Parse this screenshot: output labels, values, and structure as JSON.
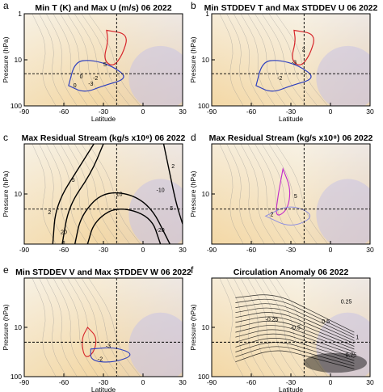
{
  "figure": {
    "xlabel": "Latitude",
    "ylabel": "Pressure (hPa)",
    "colors": {
      "warm_fill": "#f3d8a6",
      "cool_fill": "#c9c2e3",
      "pale": "#f7f1e4",
      "red_contour": "#d7262b",
      "blue_contour": "#2d3fbf",
      "magenta_contour": "#c22ac9",
      "black_contour": "#000000",
      "gray_contour": "#8a8a8a"
    }
  },
  "chart_data": [
    {
      "panel": "a",
      "type": "contour",
      "title": "Min T (K) and Max U (m/s)  06 2022",
      "x_ticks": [
        "-90",
        "-60",
        "-30",
        "0",
        "30"
      ],
      "y_ticks": [
        "1",
        "10",
        "100"
      ],
      "xlim": [
        -90,
        30
      ],
      "ylim": [
        100,
        1
      ],
      "yscale": "log",
      "show_xlabel": true,
      "contour_labels": [
        "0",
        "-2",
        "-3",
        "0",
        "5"
      ],
      "reference_lines": {
        "lat": -20,
        "pressure": 20
      }
    },
    {
      "panel": "b",
      "type": "contour",
      "title": "Min STDDEV T and Max STDDEV U  06 2022",
      "x_ticks": [
        "-90",
        "-60",
        "-30",
        "0",
        "30"
      ],
      "y_ticks": [
        "1",
        "10",
        "100"
      ],
      "xlim": [
        -90,
        30
      ],
      "ylim": [
        100,
        1
      ],
      "yscale": "log",
      "show_xlabel": true,
      "contour_labels": [
        "-3",
        "-2",
        "2"
      ],
      "reference_lines": {
        "lat": -20,
        "pressure": 20
      }
    },
    {
      "panel": "c",
      "type": "contour",
      "title": "Max Residual Stream (kg/s x10⁸)  06 2022",
      "x_ticks": [
        "-90",
        "-60",
        "-30",
        "0",
        "30"
      ],
      "y_ticks": [
        "10"
      ],
      "xlim": [
        -90,
        30
      ],
      "ylim": [
        100,
        1
      ],
      "yscale": "log",
      "show_xlabel": false,
      "contour_labels": [
        "2",
        "5",
        "10",
        "20",
        "-10",
        "-20",
        "2",
        "5"
      ],
      "reference_lines": {
        "lat": -20,
        "pressure": 20
      }
    },
    {
      "panel": "d",
      "type": "contour",
      "title": "Max Residual Stream (kg/s x10⁸)  06 2022",
      "x_ticks": [
        "-90",
        "-60",
        "-30",
        "0",
        "30"
      ],
      "y_ticks": [
        "10"
      ],
      "xlim": [
        -90,
        30
      ],
      "ylim": [
        100,
        1
      ],
      "yscale": "log",
      "show_xlabel": false,
      "contour_labels": [
        "5",
        "2"
      ],
      "reference_lines": {
        "lat": -20,
        "pressure": 20
      }
    },
    {
      "panel": "e",
      "type": "contour",
      "title": "Min STDDEV V and Max STDDEV W  06 2022",
      "x_ticks": [
        "-90",
        "-60",
        "-30",
        "0",
        "30"
      ],
      "y_ticks": [
        "10",
        "100"
      ],
      "xlim": [
        -90,
        30
      ],
      "ylim": [
        100,
        1
      ],
      "yscale": "log",
      "show_xlabel": true,
      "contour_labels": [
        "-3",
        "-2"
      ],
      "reference_lines": {
        "lat": -20,
        "pressure": 20
      }
    },
    {
      "panel": "f",
      "type": "contour",
      "title": "Circulation Anomaly  06 2022",
      "x_ticks": [
        "-90",
        "-60",
        "-30",
        "0",
        "30"
      ],
      "y_ticks": [
        "10",
        "100"
      ],
      "xlim": [
        -90,
        30
      ],
      "ylim": [
        100,
        1
      ],
      "yscale": "log",
      "show_xlabel": true,
      "contour_labels": [
        "-0.25",
        "-0.5",
        "0.5",
        "0.25",
        "0.75",
        "1"
      ],
      "reference_lines": {
        "lat": -20,
        "pressure": 20
      }
    }
  ]
}
